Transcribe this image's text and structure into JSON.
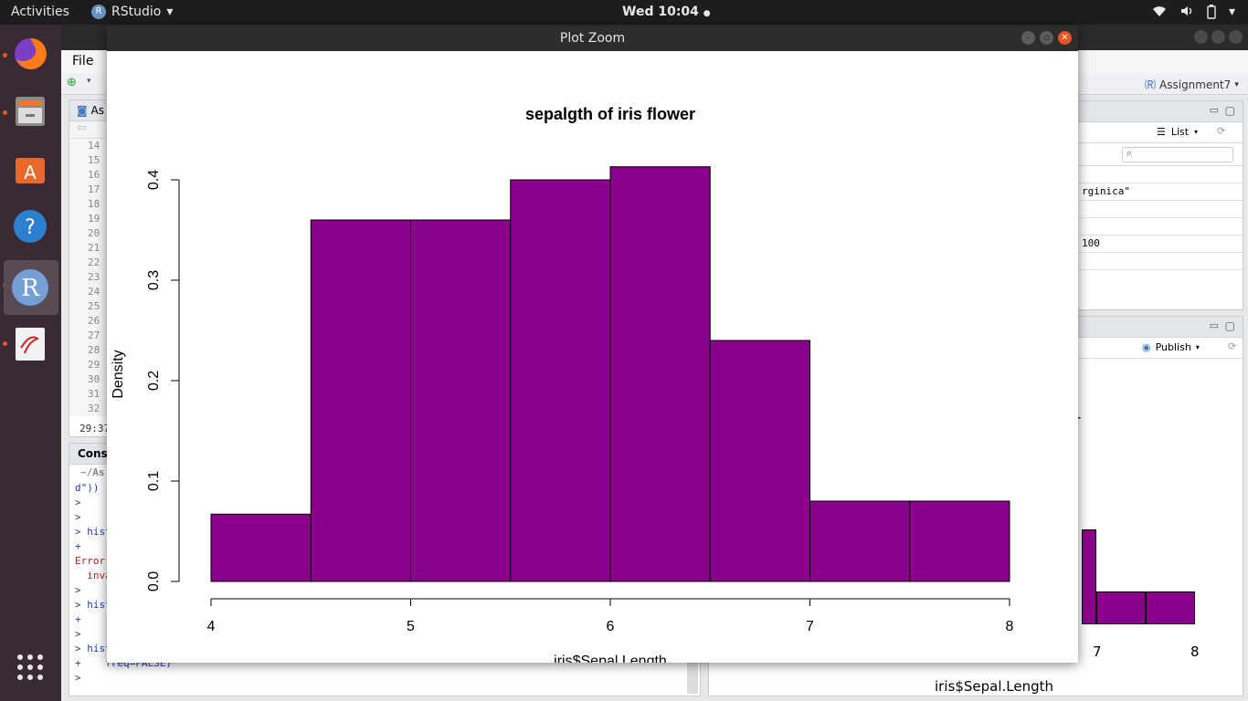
{
  "topbar": {
    "activities": "Activities",
    "app_name": "RStudio",
    "app_icon_letter": "R",
    "clock": "Wed 10:04"
  },
  "rstudio": {
    "menu_file": "File",
    "project": "Assignment7",
    "source_tab": "As",
    "line_numbers": [
      "14",
      "15",
      "16",
      "17",
      "18",
      "19",
      "20",
      "21",
      "22",
      "23",
      "24",
      "25",
      "26",
      "27",
      "28",
      "29",
      "30",
      "31",
      "32"
    ],
    "cursor_pos": "29:37",
    "console_tab": "Conso",
    "console_path": "~/As",
    "console_lines": [
      {
        "text": "d\"))",
        "cls": "blue"
      },
      {
        "text": ">",
        "cls": "blue"
      },
      {
        "text": ">",
        "cls": "blue"
      },
      {
        "text": "> hist",
        "cls": "blue"
      },
      {
        "text": "+",
        "cls": "blue"
      },
      {
        "text": "Error",
        "cls": "red"
      },
      {
        "text": "  inva",
        "cls": "red"
      },
      {
        "text": ">",
        "cls": "blue"
      },
      {
        "text": "> hist",
        "cls": "blue"
      },
      {
        "text": "+",
        "cls": "blue"
      },
      {
        "text": ">",
        "cls": "blue"
      },
      {
        "text": "> hist",
        "cls": "blue"
      },
      {
        "text": "+    freq=FALSE)",
        "cls": "blue"
      },
      {
        "text": "> ",
        "cls": "blue"
      }
    ],
    "env_view": "List",
    "env_rows": [
      "",
      "rginica\"",
      "",
      "",
      "100",
      ""
    ],
    "publish": "Publish",
    "bg_plot_title_fragment": "r",
    "bg_xlabel": "iris$Sepal.Length",
    "bg_ticks": [
      "7",
      "8"
    ]
  },
  "zoom": {
    "window_title": "Plot Zoom"
  },
  "chart_data": {
    "type": "bar",
    "title": "sepalgth of iris flower",
    "xlabel": "iris$Sepal.Length",
    "ylabel": "Density",
    "bins": [
      {
        "x0": 4.0,
        "x1": 4.5,
        "density": 0.067
      },
      {
        "x0": 4.5,
        "x1": 5.0,
        "density": 0.36
      },
      {
        "x0": 5.0,
        "x1": 5.5,
        "density": 0.36
      },
      {
        "x0": 5.5,
        "x1": 6.0,
        "density": 0.4
      },
      {
        "x0": 6.0,
        "x1": 6.5,
        "density": 0.413
      },
      {
        "x0": 6.5,
        "x1": 7.0,
        "density": 0.24
      },
      {
        "x0": 7.0,
        "x1": 7.5,
        "density": 0.08
      },
      {
        "x0": 7.5,
        "x1": 8.0,
        "density": 0.08
      }
    ],
    "xlim": [
      4,
      8
    ],
    "ylim": [
      0,
      0.4
    ],
    "xticks": [
      "4",
      "5",
      "6",
      "7",
      "8"
    ],
    "yticks": [
      "0.0",
      "0.1",
      "0.2",
      "0.3",
      "0.4"
    ],
    "bar_color": "#8b008b",
    "grid": false
  }
}
